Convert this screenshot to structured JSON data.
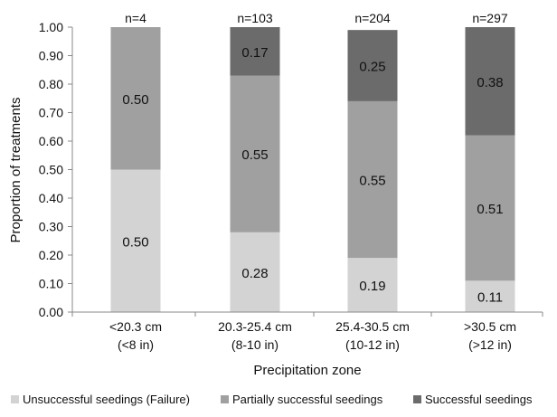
{
  "chart_data": {
    "type": "bar",
    "stacked": true,
    "title": "",
    "xlabel": "Precipitation zone",
    "ylabel": "Proportion of treatments",
    "ylim": [
      0,
      1
    ],
    "y_ticks": [
      "0.00",
      "0.10",
      "0.20",
      "0.30",
      "0.40",
      "0.50",
      "0.60",
      "0.70",
      "0.80",
      "0.90",
      "1.00"
    ],
    "categories": [
      {
        "line1": "<20.3 cm",
        "line2": "(<8 in)"
      },
      {
        "line1": "20.3-25.4 cm",
        "line2": "(8-10 in)"
      },
      {
        "line1": "25.4-30.5 cm",
        "line2": "(10-12 in)"
      },
      {
        "line1": ">30.5 cm",
        "line2": "(>12 in)"
      }
    ],
    "sample_sizes": [
      "n=4",
      "n=103",
      "n=204",
      "n=297"
    ],
    "series": [
      {
        "name": "Unsuccessful seedings (Failure)",
        "color": "#d3d3d3",
        "values": [
          0.5,
          0.28,
          0.19,
          0.11
        ],
        "labels": [
          "0.50",
          "0.28",
          "0.19",
          "0.11"
        ]
      },
      {
        "name": "Partially successful seedings",
        "color": "#a0a0a0",
        "values": [
          0.5,
          0.55,
          0.55,
          0.51
        ],
        "labels": [
          "0.50",
          "0.55",
          "0.55",
          "0.51"
        ]
      },
      {
        "name": "Successful seedings",
        "color": "#6b6b6b",
        "values": [
          0.0,
          0.17,
          0.25,
          0.38
        ],
        "labels": [
          "",
          "0.17",
          "0.25",
          "0.38"
        ]
      }
    ],
    "legend_position": "bottom",
    "grid": false
  }
}
